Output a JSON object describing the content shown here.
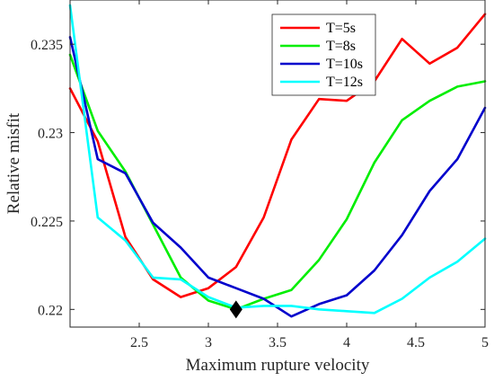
{
  "chart_data": {
    "type": "line",
    "xlabel": "Maximum rupture velocity",
    "ylabel": "Relative misfit",
    "xlim": [
      2.0,
      5.0
    ],
    "ylim": [
      0.219,
      0.2375
    ],
    "xticks": [
      2.5,
      3,
      3.5,
      4,
      4.5,
      5
    ],
    "xtick_labels": [
      "2.5",
      "3",
      "3.5",
      "4",
      "4.5",
      "5"
    ],
    "yticks": [
      0.22,
      0.225,
      0.23,
      0.235
    ],
    "ytick_labels": [
      "0.22",
      "0.225",
      "0.23",
      "0.235"
    ],
    "grid": false,
    "legend_position": "top-right",
    "x": [
      2.0,
      2.2,
      2.4,
      2.6,
      2.8,
      3.0,
      3.2,
      3.4,
      3.6,
      3.8,
      4.0,
      4.2,
      4.4,
      4.6,
      4.8,
      5.0
    ],
    "series": [
      {
        "name": "T=5s",
        "color": "#ff0000",
        "values": [
          0.2325,
          0.2295,
          0.2241,
          0.2217,
          0.2207,
          0.2212,
          0.2224,
          0.2252,
          0.2296,
          0.2319,
          0.2318,
          0.2329,
          0.2353,
          0.2339,
          0.2348,
          0.2367
        ]
      },
      {
        "name": "T=8s",
        "color": "#00ee00",
        "values": [
          0.2344,
          0.2301,
          0.2278,
          0.2248,
          0.2218,
          0.2205,
          0.22,
          0.2206,
          0.2211,
          0.2228,
          0.2251,
          0.2283,
          0.2307,
          0.2318,
          0.2326,
          0.2329
        ]
      },
      {
        "name": "T=10s",
        "color": "#0000cc",
        "values": [
          0.2354,
          0.2285,
          0.2277,
          0.2249,
          0.2235,
          0.2218,
          0.2212,
          0.2206,
          0.2196,
          0.2203,
          0.2208,
          0.2222,
          0.2242,
          0.2267,
          0.2285,
          0.2314
        ]
      },
      {
        "name": "T=12s",
        "color": "#00ffff",
        "values": [
          0.2372,
          0.2252,
          0.2239,
          0.2218,
          0.2217,
          0.2207,
          0.2201,
          0.2202,
          0.2202,
          0.22,
          0.2199,
          0.2198,
          0.2206,
          0.2218,
          0.2227,
          0.224
        ]
      }
    ],
    "marker": {
      "shape": "diamond",
      "x": 3.2,
      "y": 0.22,
      "color": "#000000"
    }
  }
}
